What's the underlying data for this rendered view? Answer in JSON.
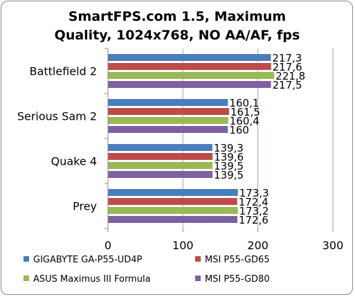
{
  "chart_data": {
    "type": "bar",
    "orientation": "horizontal",
    "title_lines": [
      "SmartFPS.com 1.5, Maximum",
      "Quality, 1024x768, NO AA/AF, fps"
    ],
    "categories": [
      "Battlefield 2",
      "Serious Sam 2",
      "Quake 4",
      "Prey"
    ],
    "series": [
      {
        "name": "GIGABYTE GA-P55-UD4P",
        "color": "#4a7ebb",
        "values": [
          217.3,
          160.1,
          139.3,
          173.3
        ],
        "labels": [
          "217,3",
          "160,1",
          "139,3",
          "173,3"
        ]
      },
      {
        "name": "MSI P55-GD65",
        "color": "#be4b48",
        "values": [
          217.6,
          161.5,
          139.6,
          172.4
        ],
        "labels": [
          "217,6",
          "161,5",
          "139,6",
          "172,4"
        ]
      },
      {
        "name": "ASUS Maximus III Formula",
        "color": "#98b954",
        "values": [
          221.8,
          160.4,
          139.5,
          173.2
        ],
        "labels": [
          "221,8",
          "160,4",
          "139,5",
          "173,2"
        ]
      },
      {
        "name": "MSI P55-GD80",
        "color": "#7d60a0",
        "values": [
          217.5,
          160,
          139.5,
          172.6
        ],
        "labels": [
          "217,5",
          "160",
          "139,5",
          "172,6"
        ]
      }
    ],
    "xlim": [
      0,
      300
    ],
    "xticks": [
      "0",
      "100",
      "200",
      "300"
    ],
    "grid": true,
    "legend_position": "bottom"
  }
}
